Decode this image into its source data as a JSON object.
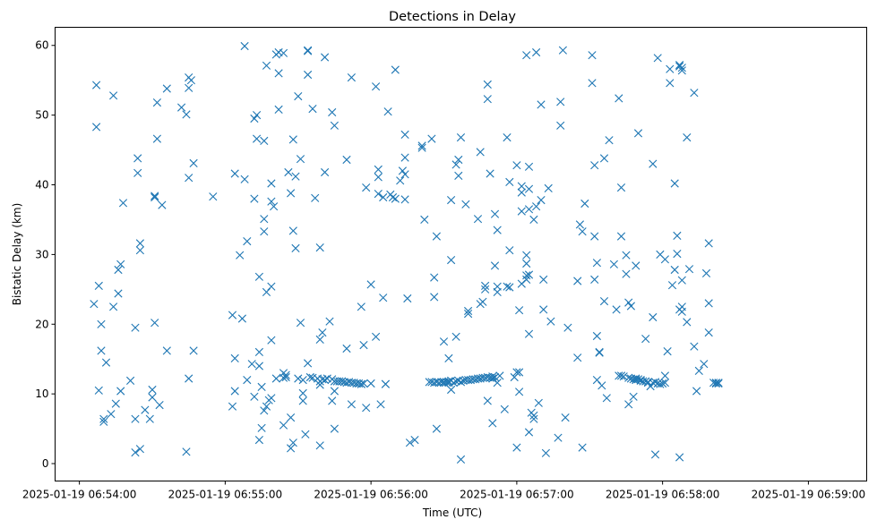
{
  "chart_data": {
    "type": "scatter",
    "title": "Detections in Delay",
    "xlabel": "Time (UTC)",
    "ylabel": "Bistatic Delay (km)",
    "x_unit": "seconds after 2025-01-19 06:54:00 (UTC)",
    "xlim": [
      -10,
      324
    ],
    "ylim": [
      -2.5,
      62.6
    ],
    "x_ticks": [
      0,
      60,
      120,
      180,
      240,
      300
    ],
    "x_tick_labels": [
      "2025-01-19 06:54:00",
      "2025-01-19 06:55:00",
      "2025-01-19 06:56:00",
      "2025-01-19 06:57:00",
      "2025-01-19 06:58:00",
      "2025-01-19 06:59:00"
    ],
    "y_ticks": [
      0,
      10,
      20,
      30,
      40,
      50,
      60
    ],
    "y_tick_labels": [
      "0",
      "10",
      "20",
      "30",
      "40",
      "50",
      "60"
    ],
    "grid": false,
    "legend": "none",
    "marker": "x",
    "color": "#1f77b4",
    "points": [
      [
        6,
        22.9
      ],
      [
        7,
        54.3
      ],
      [
        7,
        48.3
      ],
      [
        8,
        25.5
      ],
      [
        8,
        10.5
      ],
      [
        9,
        20.0
      ],
      [
        9,
        16.2
      ],
      [
        10,
        6.4
      ],
      [
        10,
        6.0
      ],
      [
        11,
        14.5
      ],
      [
        13,
        7.1
      ],
      [
        14,
        52.8
      ],
      [
        14,
        22.5
      ],
      [
        15,
        8.6
      ],
      [
        16,
        24.4
      ],
      [
        16,
        27.8
      ],
      [
        17,
        28.6
      ],
      [
        17,
        10.4
      ],
      [
        18,
        37.4
      ],
      [
        21,
        11.9
      ],
      [
        23,
        19.5
      ],
      [
        23,
        6.4
      ],
      [
        23,
        1.6
      ],
      [
        24,
        43.8
      ],
      [
        24,
        41.7
      ],
      [
        25,
        30.6
      ],
      [
        25,
        31.6
      ],
      [
        25,
        2.1
      ],
      [
        27,
        7.7
      ],
      [
        29,
        6.4
      ],
      [
        30,
        10.6
      ],
      [
        30,
        9.5
      ],
      [
        31,
        20.2
      ],
      [
        31,
        38.2
      ],
      [
        31,
        38.4
      ],
      [
        32,
        46.6
      ],
      [
        32,
        51.8
      ],
      [
        33,
        8.4
      ],
      [
        34,
        37.1
      ],
      [
        36,
        53.8
      ],
      [
        36,
        16.2
      ],
      [
        42,
        51.1
      ],
      [
        44,
        50.1
      ],
      [
        44,
        1.7
      ],
      [
        45,
        53.9
      ],
      [
        45,
        55.4
      ],
      [
        45,
        41.0
      ],
      [
        45,
        12.2
      ],
      [
        46,
        55.0
      ],
      [
        47,
        16.2
      ],
      [
        47,
        43.1
      ],
      [
        55,
        38.3
      ],
      [
        63,
        21.3
      ],
      [
        63,
        8.2
      ],
      [
        64,
        15.1
      ],
      [
        64,
        10.4
      ],
      [
        64,
        41.6
      ],
      [
        66,
        29.9
      ],
      [
        67,
        20.8
      ],
      [
        68,
        59.9
      ],
      [
        68,
        40.8
      ],
      [
        69,
        31.9
      ],
      [
        69,
        12.0
      ],
      [
        71,
        14.3
      ],
      [
        72,
        49.5
      ],
      [
        72,
        38.0
      ],
      [
        72,
        9.6
      ],
      [
        73,
        46.6
      ],
      [
        73,
        50.0
      ],
      [
        74,
        26.8
      ],
      [
        74,
        16.0
      ],
      [
        74,
        14.0
      ],
      [
        74,
        3.4
      ],
      [
        75,
        5.1
      ],
      [
        75,
        11.0
      ],
      [
        76,
        33.3
      ],
      [
        76,
        35.1
      ],
      [
        76,
        46.3
      ],
      [
        76,
        7.6
      ],
      [
        77,
        8.2
      ],
      [
        77,
        57.1
      ],
      [
        77,
        24.6
      ],
      [
        78,
        9.1
      ],
      [
        79,
        37.6
      ],
      [
        79,
        40.2
      ],
      [
        79,
        25.4
      ],
      [
        79,
        17.7
      ],
      [
        79,
        9.4
      ],
      [
        80,
        36.9
      ],
      [
        81,
        58.7
      ],
      [
        81,
        12.2
      ],
      [
        82,
        50.8
      ],
      [
        82,
        56.0
      ],
      [
        82,
        59.0
      ],
      [
        84,
        58.9
      ],
      [
        84,
        13.0
      ],
      [
        84,
        12.3
      ],
      [
        84,
        5.5
      ],
      [
        85,
        12.7
      ],
      [
        85,
        12.4
      ],
      [
        86,
        41.8
      ],
      [
        87,
        38.8
      ],
      [
        87,
        6.6
      ],
      [
        87,
        2.2
      ],
      [
        88,
        46.5
      ],
      [
        88,
        33.4
      ],
      [
        88,
        3.0
      ],
      [
        89,
        41.2
      ],
      [
        89,
        30.9
      ],
      [
        90,
        52.7
      ],
      [
        90,
        12.2
      ],
      [
        91,
        43.7
      ],
      [
        91,
        20.2
      ],
      [
        92,
        12.0
      ],
      [
        92,
        10.1
      ],
      [
        92,
        9.0
      ],
      [
        93,
        4.2
      ],
      [
        94,
        55.8
      ],
      [
        94,
        59.2
      ],
      [
        94,
        59.3
      ],
      [
        94,
        14.4
      ],
      [
        95,
        12.4
      ],
      [
        96,
        50.9
      ],
      [
        96,
        12.3
      ],
      [
        97,
        38.1
      ],
      [
        98,
        12.2
      ],
      [
        99,
        31.0
      ],
      [
        99,
        17.8
      ],
      [
        99,
        11.8
      ],
      [
        99,
        11.3
      ],
      [
        99,
        2.6
      ],
      [
        100,
        18.8
      ],
      [
        100,
        12.1
      ],
      [
        101,
        58.3
      ],
      [
        101,
        41.8
      ],
      [
        101,
        12.0
      ],
      [
        102,
        12.2
      ],
      [
        103,
        20.4
      ],
      [
        104,
        50.4
      ],
      [
        104,
        12.1
      ],
      [
        104,
        9.0
      ],
      [
        105,
        48.5
      ],
      [
        105,
        11.8
      ],
      [
        105,
        10.4
      ],
      [
        105,
        5.0
      ],
      [
        106,
        11.8
      ],
      [
        107,
        11.8
      ],
      [
        108,
        11.8
      ],
      [
        109,
        11.7
      ],
      [
        110,
        11.6
      ],
      [
        110,
        16.5
      ],
      [
        110,
        43.6
      ],
      [
        111,
        11.7
      ],
      [
        112,
        55.4
      ],
      [
        112,
        11.6
      ],
      [
        112,
        8.5
      ],
      [
        113,
        11.6
      ],
      [
        114,
        11.5
      ],
      [
        115,
        11.5
      ],
      [
        116,
        11.4
      ],
      [
        116,
        22.5
      ],
      [
        116,
        11.4
      ],
      [
        117,
        11.5
      ],
      [
        117,
        17.0
      ],
      [
        118,
        8.0
      ],
      [
        118,
        39.6
      ],
      [
        120,
        11.5
      ],
      [
        120,
        25.7
      ],
      [
        122,
        54.1
      ],
      [
        122,
        18.2
      ],
      [
        123,
        42.2
      ],
      [
        123,
        41.1
      ],
      [
        123,
        38.7
      ],
      [
        124,
        8.5
      ],
      [
        125,
        23.8
      ],
      [
        125,
        38.2
      ],
      [
        126,
        11.4
      ],
      [
        126,
        11.4
      ],
      [
        127,
        50.5
      ],
      [
        128,
        38.6
      ],
      [
        129,
        38.2
      ],
      [
        130,
        56.5
      ],
      [
        130,
        38.0
      ],
      [
        132,
        40.6
      ],
      [
        133,
        42.0
      ],
      [
        134,
        43.9
      ],
      [
        134,
        47.2
      ],
      [
        134,
        41.5
      ],
      [
        134,
        37.9
      ],
      [
        135,
        23.7
      ],
      [
        136,
        3.0
      ],
      [
        138,
        3.4
      ],
      [
        141,
        45.6
      ],
      [
        141,
        45.3
      ],
      [
        142,
        35.0
      ],
      [
        144,
        11.7
      ],
      [
        145,
        11.7
      ],
      [
        145,
        46.6
      ],
      [
        146,
        11.6
      ],
      [
        146,
        23.9
      ],
      [
        146,
        26.7
      ],
      [
        147,
        11.7
      ],
      [
        147,
        32.6
      ],
      [
        147,
        5.0
      ],
      [
        148,
        11.6
      ],
      [
        149,
        11.7
      ],
      [
        150,
        17.5
      ],
      [
        150,
        11.6
      ],
      [
        150,
        11.7
      ],
      [
        151,
        11.7
      ],
      [
        152,
        15.1
      ],
      [
        152,
        11.6
      ],
      [
        152,
        11.8
      ],
      [
        153,
        29.2
      ],
      [
        153,
        11.9
      ],
      [
        153,
        10.6
      ],
      [
        153,
        37.8
      ],
      [
        154,
        11.6
      ],
      [
        155,
        42.9
      ],
      [
        155,
        18.2
      ],
      [
        155,
        11.8
      ],
      [
        156,
        11.9
      ],
      [
        156,
        43.6
      ],
      [
        156,
        41.3
      ],
      [
        157,
        11.7
      ],
      [
        157,
        0.6
      ],
      [
        157,
        46.8
      ],
      [
        158,
        11.9
      ],
      [
        159,
        37.2
      ],
      [
        159,
        12.0
      ],
      [
        160,
        12.0
      ],
      [
        160,
        21.9
      ],
      [
        160,
        21.5
      ],
      [
        161,
        12.0
      ],
      [
        162,
        12.1
      ],
      [
        163,
        12.1
      ],
      [
        164,
        12.2
      ],
      [
        164,
        35.1
      ],
      [
        165,
        44.7
      ],
      [
        165,
        12.2
      ],
      [
        165,
        22.9
      ],
      [
        166,
        23.2
      ],
      [
        166,
        12.3
      ],
      [
        167,
        12.3
      ],
      [
        167,
        25.5
      ],
      [
        167,
        25.0
      ],
      [
        168,
        12.4
      ],
      [
        168,
        54.4
      ],
      [
        168,
        52.3
      ],
      [
        168,
        9.0
      ],
      [
        169,
        12.3
      ],
      [
        169,
        41.6
      ],
      [
        170,
        12.5
      ],
      [
        170,
        12.2
      ],
      [
        170,
        5.8
      ],
      [
        171,
        12.4
      ],
      [
        171,
        28.4
      ],
      [
        171,
        35.8
      ],
      [
        172,
        11.6
      ],
      [
        172,
        25.4
      ],
      [
        172,
        24.6
      ],
      [
        172,
        33.5
      ],
      [
        173,
        12.6
      ],
      [
        175,
        7.8
      ],
      [
        176,
        46.8
      ],
      [
        176,
        25.4
      ],
      [
        177,
        25.3
      ],
      [
        177,
        30.6
      ],
      [
        177,
        40.4
      ],
      [
        179,
        12.4
      ],
      [
        180,
        42.8
      ],
      [
        180,
        2.3
      ],
      [
        180,
        13.1
      ],
      [
        181,
        13.1
      ],
      [
        181,
        22.0
      ],
      [
        181,
        10.3
      ],
      [
        182,
        38.9
      ],
      [
        182,
        36.2
      ],
      [
        182,
        25.8
      ],
      [
        182,
        39.8
      ],
      [
        184,
        27.0
      ],
      [
        184,
        29.9
      ],
      [
        184,
        28.7
      ],
      [
        184,
        26.4
      ],
      [
        184,
        58.6
      ],
      [
        185,
        42.6
      ],
      [
        185,
        36.5
      ],
      [
        185,
        39.4
      ],
      [
        185,
        27.1
      ],
      [
        185,
        18.6
      ],
      [
        185,
        4.5
      ],
      [
        186,
        7.3
      ],
      [
        187,
        6.4
      ],
      [
        187,
        35.0
      ],
      [
        187,
        6.9
      ],
      [
        188,
        59.0
      ],
      [
        188,
        36.9
      ],
      [
        189,
        8.7
      ],
      [
        190,
        51.5
      ],
      [
        190,
        37.8
      ],
      [
        191,
        26.4
      ],
      [
        191,
        22.1
      ],
      [
        192,
        1.5
      ],
      [
        193,
        39.5
      ],
      [
        194,
        20.4
      ],
      [
        197,
        3.7
      ],
      [
        198,
        48.5
      ],
      [
        198,
        51.9
      ],
      [
        199,
        59.3
      ],
      [
        200,
        6.6
      ],
      [
        201,
        19.5
      ],
      [
        205,
        26.2
      ],
      [
        205,
        15.2
      ],
      [
        206,
        34.3
      ],
      [
        207,
        2.3
      ],
      [
        207,
        33.3
      ],
      [
        208,
        37.3
      ],
      [
        211,
        58.6
      ],
      [
        211,
        54.6
      ],
      [
        212,
        42.8
      ],
      [
        212,
        32.6
      ],
      [
        212,
        26.4
      ],
      [
        213,
        12.0
      ],
      [
        213,
        28.8
      ],
      [
        213,
        18.3
      ],
      [
        214,
        16.0
      ],
      [
        214,
        15.9
      ],
      [
        215,
        11.2
      ],
      [
        216,
        23.3
      ],
      [
        216,
        43.8
      ],
      [
        217,
        9.4
      ],
      [
        218,
        46.4
      ],
      [
        220,
        28.6
      ],
      [
        221,
        22.1
      ],
      [
        222,
        52.4
      ],
      [
        222,
        12.6
      ],
      [
        223,
        12.6
      ],
      [
        223,
        39.6
      ],
      [
        223,
        32.6
      ],
      [
        224,
        12.5
      ],
      [
        225,
        27.2
      ],
      [
        225,
        29.9
      ],
      [
        226,
        12.3
      ],
      [
        226,
        23.1
      ],
      [
        226,
        8.5
      ],
      [
        227,
        12.2
      ],
      [
        227,
        22.6
      ],
      [
        228,
        12.1
      ],
      [
        228,
        9.6
      ],
      [
        229,
        12.2
      ],
      [
        229,
        28.4
      ],
      [
        229,
        12.0
      ],
      [
        230,
        12.1
      ],
      [
        230,
        47.4
      ],
      [
        231,
        11.9
      ],
      [
        231,
        12.0
      ],
      [
        232,
        11.8
      ],
      [
        233,
        11.8
      ],
      [
        233,
        17.9
      ],
      [
        234,
        11.7
      ],
      [
        234,
        11.6
      ],
      [
        235,
        11.1
      ],
      [
        236,
        11.6
      ],
      [
        236,
        21.0
      ],
      [
        236,
        43.0
      ],
      [
        237,
        1.3
      ],
      [
        237,
        11.7
      ],
      [
        238,
        11.5
      ],
      [
        238,
        58.2
      ],
      [
        239,
        11.4
      ],
      [
        239,
        30.0
      ],
      [
        240,
        11.5
      ],
      [
        241,
        11.6
      ],
      [
        241,
        12.6
      ],
      [
        241,
        29.3
      ],
      [
        242,
        16.1
      ],
      [
        243,
        56.6
      ],
      [
        243,
        54.6
      ],
      [
        244,
        25.6
      ],
      [
        245,
        40.2
      ],
      [
        245,
        27.8
      ],
      [
        246,
        32.7
      ],
      [
        246,
        30.1
      ],
      [
        247,
        22.1
      ],
      [
        247,
        57.2
      ],
      [
        247,
        57.0
      ],
      [
        247,
        0.9
      ],
      [
        248,
        56.4
      ],
      [
        248,
        56.8
      ],
      [
        248,
        26.3
      ],
      [
        248,
        22.5
      ],
      [
        248,
        21.8
      ],
      [
        250,
        46.8
      ],
      [
        250,
        20.3
      ],
      [
        251,
        27.9
      ],
      [
        253,
        53.2
      ],
      [
        253,
        16.8
      ],
      [
        254,
        10.4
      ],
      [
        255,
        13.3
      ],
      [
        257,
        14.3
      ],
      [
        258,
        27.3
      ],
      [
        259,
        31.6
      ],
      [
        259,
        23.0
      ],
      [
        259,
        18.8
      ],
      [
        261,
        11.6
      ],
      [
        262,
        11.5
      ],
      [
        262,
        11.6
      ],
      [
        263,
        11.6
      ],
      [
        263,
        11.5
      ]
    ]
  }
}
